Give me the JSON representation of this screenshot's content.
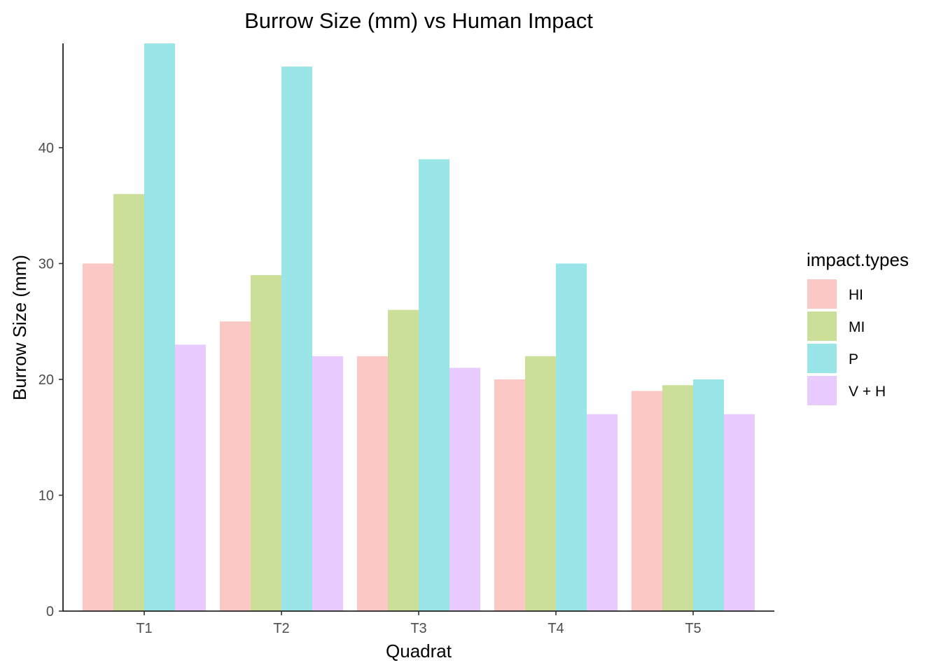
{
  "chart_data": {
    "type": "bar",
    "title": "Burrow Size (mm) vs Human Impact",
    "xlabel": "Quadrat",
    "ylabel": "Burrow Size (mm)",
    "categories": [
      "T1",
      "T2",
      "T3",
      "T4",
      "T5"
    ],
    "ylim": [
      0,
      49
    ],
    "yticks": [
      0,
      10,
      20,
      30,
      40
    ],
    "grid": false,
    "legend": {
      "title": "impact.types",
      "placement": "right"
    },
    "series": [
      {
        "name": "HI",
        "color": "#f8766d",
        "values": [
          30,
          25,
          22,
          20,
          19
        ]
      },
      {
        "name": "MI",
        "color": "#7cae00",
        "values": [
          36,
          29,
          26,
          22,
          19.5
        ]
      },
      {
        "name": "P",
        "color": "#00bfc4",
        "values": [
          49,
          47,
          39,
          30,
          20
        ]
      },
      {
        "name": "V + H",
        "color": "#c77cff",
        "values": [
          23,
          22,
          21,
          17,
          17
        ]
      }
    ],
    "bar_opacity": 0.4
  }
}
